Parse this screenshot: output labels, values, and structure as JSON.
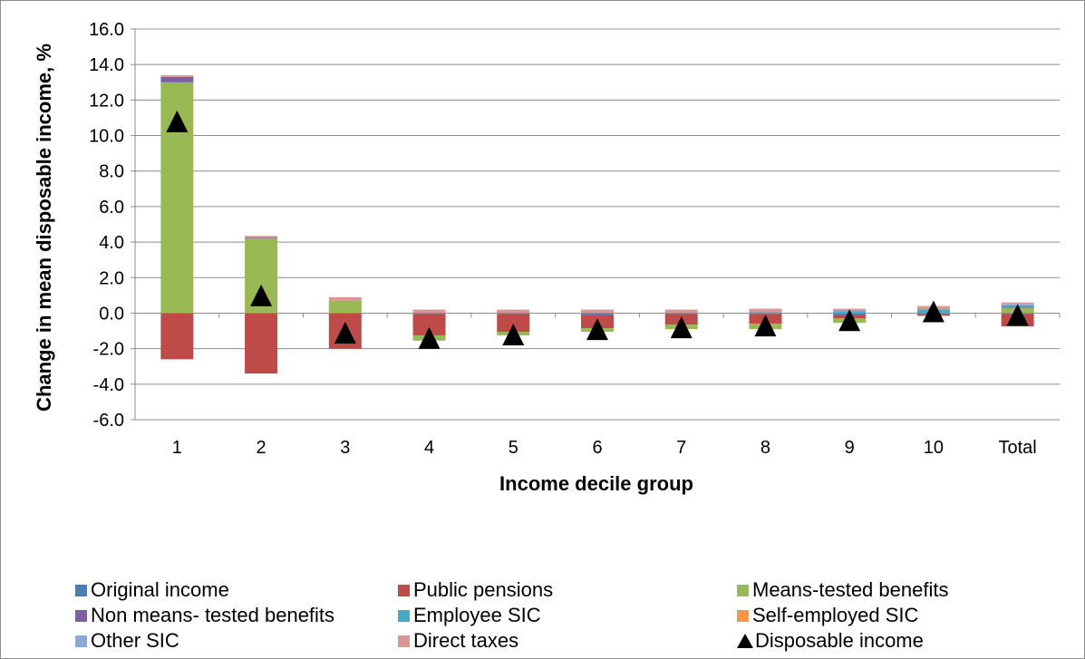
{
  "chart_data": {
    "type": "bar",
    "stacked": true,
    "xlabel": "Income decile group",
    "ylabel": "Change in mean disposable income, %",
    "ylim": [
      -6,
      16
    ],
    "yticks": [
      "-6.0",
      "-4.0",
      "-2.0",
      "0.0",
      "2.0",
      "4.0",
      "6.0",
      "8.0",
      "10.0",
      "12.0",
      "14.0",
      "16.0"
    ],
    "ytick_values": [
      -6,
      -4,
      -2,
      0,
      2,
      4,
      6,
      8,
      10,
      12,
      14,
      16
    ],
    "grid": true,
    "legend_position": "bottom",
    "categories": [
      "1",
      "2",
      "3",
      "4",
      "5",
      "6",
      "7",
      "8",
      "9",
      "10",
      "Total"
    ],
    "series": [
      {
        "name": "Original income",
        "color": "#4a7ebb",
        "values": [
          0.0,
          0.0,
          0.0,
          -0.05,
          -0.05,
          -0.1,
          -0.05,
          -0.05,
          -0.1,
          -0.05,
          -0.05
        ]
      },
      {
        "name": "Public pensions",
        "color": "#be4b48",
        "values": [
          -2.6,
          -3.4,
          -2.0,
          -1.2,
          -1.0,
          -0.75,
          -0.6,
          -0.55,
          -0.2,
          -0.1,
          -0.7
        ]
      },
      {
        "name": "Means-tested benefits",
        "color": "#98b954",
        "values": [
          13.0,
          4.2,
          0.7,
          -0.3,
          -0.2,
          -0.2,
          -0.25,
          -0.3,
          -0.25,
          0.0,
          0.3
        ]
      },
      {
        "name": "Non means- tested benefits",
        "color": "#7d60a0",
        "values": [
          0.3,
          0.05,
          0.0,
          0.0,
          0.0,
          0.0,
          0.0,
          0.0,
          0.0,
          0.0,
          0.05
        ]
      },
      {
        "name": "Employee SIC",
        "color": "#46aac5",
        "values": [
          0.0,
          0.0,
          0.0,
          0.0,
          0.0,
          0.0,
          0.0,
          0.05,
          0.1,
          0.2,
          0.1
        ]
      },
      {
        "name": "Self-employed SIC",
        "color": "#f79646",
        "values": [
          0.0,
          0.0,
          0.0,
          0.0,
          0.0,
          0.0,
          0.0,
          0.0,
          0.0,
          0.05,
          0.0
        ]
      },
      {
        "name": "Other SIC",
        "color": "#8aa9d6",
        "values": [
          0.0,
          0.0,
          0.0,
          0.0,
          0.0,
          0.0,
          0.0,
          0.0,
          0.05,
          0.05,
          0.05
        ]
      },
      {
        "name": "Direct taxes",
        "color": "#d99694",
        "values": [
          0.1,
          0.1,
          0.2,
          0.2,
          0.2,
          0.2,
          0.2,
          0.2,
          0.1,
          0.1,
          0.1
        ]
      }
    ],
    "markers": {
      "name": "Disposable income",
      "color": "#000000",
      "values": [
        10.8,
        1.0,
        -1.1,
        -1.4,
        -1.2,
        -0.9,
        -0.8,
        -0.7,
        -0.4,
        0.1,
        -0.1
      ]
    }
  }
}
